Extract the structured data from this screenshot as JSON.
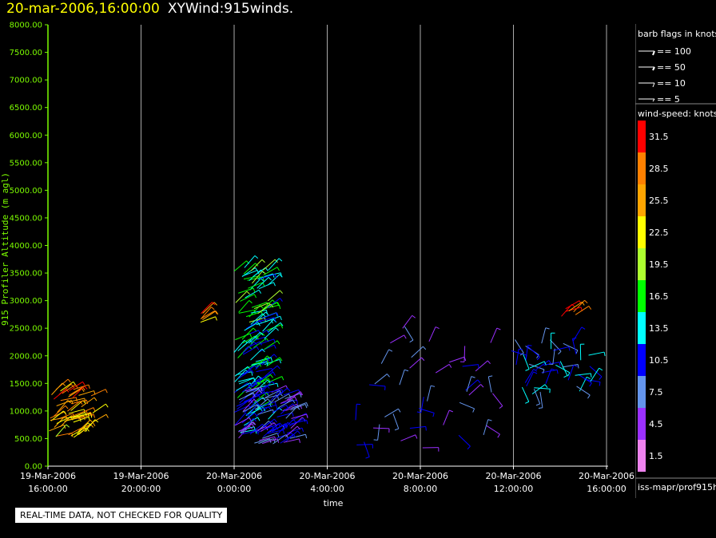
{
  "title": {
    "date": "20-mar-2006,16:00:00",
    "name": "XYWind:915winds."
  },
  "notice": "REAL-TIME DATA, NOT CHECKED FOR QUALITY",
  "legend": {
    "barb_title": "barb flags in knots",
    "barbs": [
      "== 100",
      "== 50",
      "== 10",
      "== 5"
    ],
    "speed_title": "wind-speed: knots",
    "speed_labels": [
      "31.5",
      "28.5",
      "25.5",
      "22.5",
      "19.5",
      "16.5",
      "13.5",
      "10.5",
      "7.5",
      "4.5",
      "1.5"
    ],
    "speed_colors": [
      "#ff0000",
      "#ff8000",
      "#ffa500",
      "#ffff00",
      "#adff2f",
      "#00ff00",
      "#00ffff",
      "#0000ff",
      "#6495ed",
      "#9b30ff",
      "#ee82ee"
    ],
    "source": "iss-mapr/prof915h"
  },
  "chart_data": {
    "type": "scatter",
    "xlabel": "time",
    "ylabel": "915 Profiler Altitude (m agl)",
    "ylim": [
      0,
      8000
    ],
    "yticks": [
      "0.00",
      "500.00",
      "1000.00",
      "1500.00",
      "2000.00",
      "2500.00",
      "3000.00",
      "3500.00",
      "4000.00",
      "4500.00",
      "5000.00",
      "5500.00",
      "6000.00",
      "6500.00",
      "7000.00",
      "7500.00",
      "8000.00"
    ],
    "xlim_hours": [
      0,
      24
    ],
    "xticks": [
      {
        "date": "19-Mar-2006",
        "time": "16:00:00"
      },
      {
        "date": "19-Mar-2006",
        "time": "20:00:00"
      },
      {
        "date": "20-Mar-2006",
        "time": "0:00:00"
      },
      {
        "date": "20-Mar-2006",
        "time": "4:00:00"
      },
      {
        "date": "20-Mar-2006",
        "time": "8:00:00"
      },
      {
        "date": "20-Mar-2006",
        "time": "12:00:00"
      },
      {
        "date": "20-Mar-2006",
        "time": "16:00:00"
      }
    ],
    "grid": true,
    "clusters": [
      {
        "start": "19-Mar-2006 16:00",
        "end": "19-Mar-2006 18:00",
        "alt_min": 500,
        "alt_max": 1400,
        "speed_knots": 28
      },
      {
        "start": "19-Mar-2006 22:30",
        "end": "19-Mar-2006 22:40",
        "alt_min": 2600,
        "alt_max": 2900,
        "speed_knots": 31
      },
      {
        "start": "20-Mar-2006 0:00",
        "end": "20-Mar-2006 1:30",
        "alt_min": 600,
        "alt_max": 3600,
        "speed_knots": 16
      },
      {
        "start": "20-Mar-2006 0:00",
        "end": "20-Mar-2006 2:30",
        "alt_min": 400,
        "alt_max": 1400,
        "speed_knots": 8
      },
      {
        "start": "20-Mar-2006 5:00",
        "end": "20-Mar-2006 12:00",
        "alt_min": 300,
        "alt_max": 2700,
        "speed_knots": 8
      },
      {
        "start": "20-Mar-2006 12:00",
        "end": "20-Mar-2006 15:30",
        "alt_min": 1300,
        "alt_max": 2300,
        "speed_knots": 11
      },
      {
        "start": "20-Mar-2006 14:00",
        "end": "20-Mar-2006 14:40",
        "alt_min": 2700,
        "alt_max": 2900,
        "speed_knots": 31
      }
    ]
  }
}
